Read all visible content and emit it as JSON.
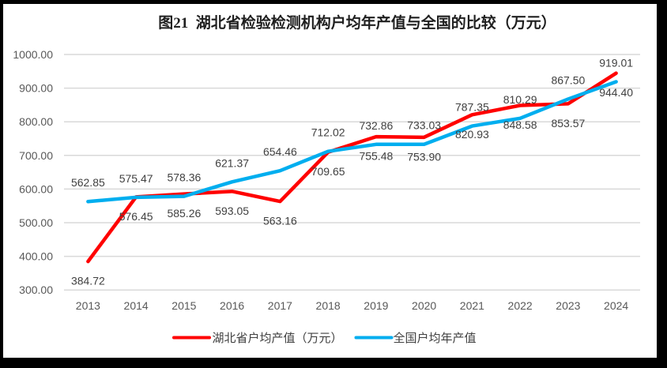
{
  "chart_data": {
    "type": "line",
    "title": "图21  湖北省检验检测机构户均年产值与全国的比较（万元）",
    "categories": [
      "2013",
      "2014",
      "2015",
      "2016",
      "2017",
      "2018",
      "2019",
      "2020",
      "2021",
      "2022",
      "2023",
      "2024"
    ],
    "series": [
      {
        "name": "湖北省户均产值（万元）",
        "color": "#FF0000",
        "values": [
          384.72,
          576.45,
          585.26,
          593.05,
          563.16,
          709.65,
          755.48,
          753.9,
          820.93,
          848.58,
          853.57,
          944.4
        ],
        "label_position": "below"
      },
      {
        "name": "全国户均年产值",
        "color": "#00AEEF",
        "values": [
          562.85,
          575.47,
          578.36,
          621.37,
          654.46,
          712.02,
          732.86,
          733.03,
          787.35,
          810.29,
          867.5,
          919.01
        ],
        "label_position": "above"
      }
    ],
    "ylim": [
      300,
      1000
    ],
    "ytick_step": 100,
    "ytick_labels": [
      "300.00",
      "400.00",
      "500.00",
      "600.00",
      "700.00",
      "800.00",
      "900.00",
      "1000.00"
    ],
    "grid": true,
    "legend_position": "bottom",
    "xlabel": "",
    "ylabel": ""
  },
  "colors": {
    "frame": "#000000",
    "chart_background": "#ffffff",
    "gridline": "#d9d9d9",
    "axis_text": "#595959",
    "data_label_text": "#404040",
    "title_text": "#1f1f1f",
    "legend_text": "#404040",
    "series_hubei": "#FF0000",
    "series_national": "#00AEEF"
  }
}
